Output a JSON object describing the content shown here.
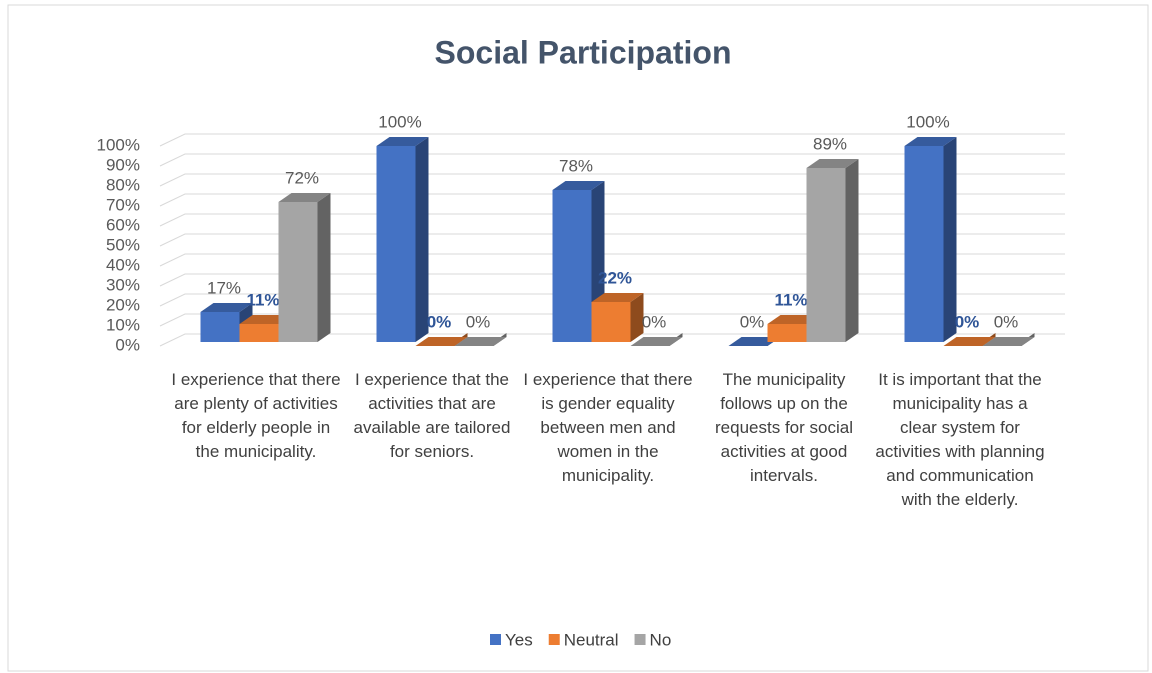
{
  "chart_data": {
    "type": "bar3d",
    "title": "Social Participation",
    "categories": [
      "I experience that there are plenty of activities for elderly people in the municipality.",
      "I experience that the activities that are available are tailored for seniors.",
      "I experience that there is gender equality between men and women in the municipality.",
      "The municipality follows up on the requests for social activities at good intervals.",
      "It is important that the municipality has a clear system for activities with planning and communication with the elderly."
    ],
    "series": [
      {
        "name": "Yes",
        "color": "#4472c4",
        "values": [
          17,
          100,
          78,
          0,
          100
        ],
        "value_labels": [
          "17%",
          "100%",
          "78%",
          "0%",
          "100%"
        ]
      },
      {
        "name": "Neutral",
        "color": "#ed7d31",
        "values": [
          11,
          0,
          22,
          11,
          0
        ],
        "value_labels": [
          "11%",
          "0%",
          "22%",
          "11%",
          "0%"
        ]
      },
      {
        "name": "No",
        "color": "#a5a5a5",
        "values": [
          72,
          0,
          0,
          89,
          0
        ],
        "value_labels": [
          "72%",
          "0%",
          "0%",
          "89%",
          "0%"
        ]
      }
    ],
    "ylim": [
      0,
      100
    ],
    "yticks": [
      {
        "value": 0,
        "label": "0%"
      },
      {
        "value": 10,
        "label": "10%"
      },
      {
        "value": 20,
        "label": "20%"
      },
      {
        "value": 30,
        "label": "30%"
      },
      {
        "value": 40,
        "label": "40%"
      },
      {
        "value": 50,
        "label": "50%"
      },
      {
        "value": 60,
        "label": "60%"
      },
      {
        "value": 70,
        "label": "70%"
      },
      {
        "value": 80,
        "label": "80%"
      },
      {
        "value": 90,
        "label": "90%"
      },
      {
        "value": 100,
        "label": "100%"
      }
    ],
    "grid": true,
    "legend": "bottom"
  }
}
